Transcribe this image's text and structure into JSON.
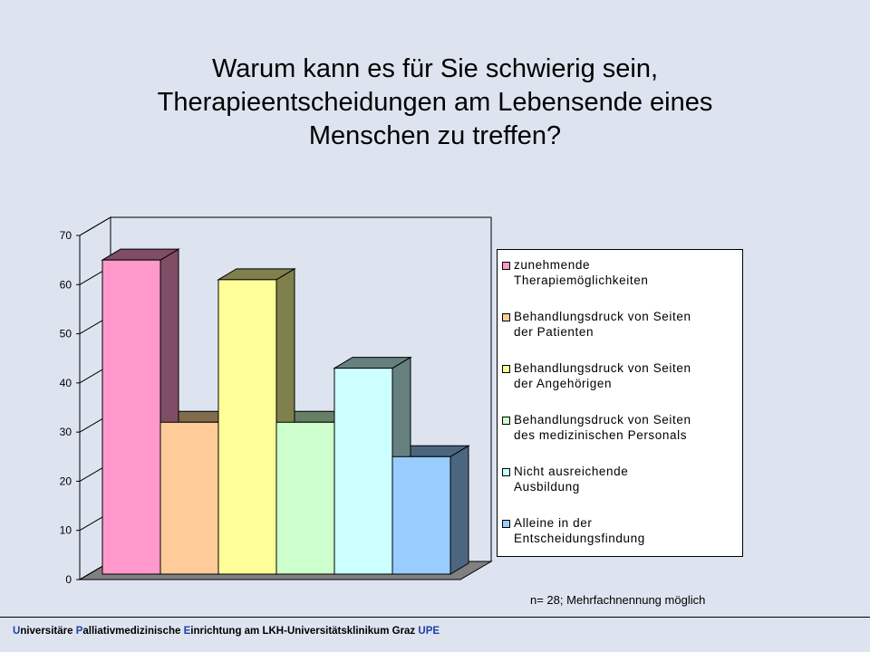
{
  "title_lines": [
    "Warum kann es für Sie schwierig sein,",
    "Therapieentscheidungen am Lebensende eines",
    "Menschen zu treffen?"
  ],
  "chart_data": {
    "type": "bar",
    "style": "3d-column",
    "categories": [
      "zunehmende Therapiemöglichkeiten",
      "Behandlungsdruck von Seiten der Patienten",
      "Behandlungsdruck von Seiten der Angehörigen",
      "Behandlungsdruck von Seiten des medizinischen Personals",
      "Nicht ausreichende Ausbildung",
      "Alleine in der Entscheidungsfindung"
    ],
    "values": [
      65,
      32,
      61,
      32,
      43,
      25
    ],
    "colors": [
      "#ff99cc",
      "#ffcc99",
      "#ffff99",
      "#ccffcc",
      "#ccffff",
      "#99ccff"
    ],
    "side_colors": [
      "#804d66",
      "#806c4d",
      "#80804d",
      "#668066",
      "#668080",
      "#4d6680"
    ],
    "ylim": [
      0,
      70
    ],
    "yticks": [
      "0",
      "10",
      "20",
      "30",
      "40",
      "50",
      "60",
      "70"
    ],
    "legend_position": "right",
    "legend": [
      [
        "zunehmende",
        "Therapiemöglichkeiten"
      ],
      [
        "Behandlungsdruck von Seiten",
        "der Patienten"
      ],
      [
        "Behandlungsdruck von Seiten",
        "der Angehörigen"
      ],
      [
        "Behandlungsdruck von Seiten",
        "des medizinischen Personals"
      ],
      [
        "Nicht ausreichende",
        "Ausbildung"
      ],
      [
        "Alleine in der",
        "Entscheidungsfindung"
      ]
    ],
    "grid": false
  },
  "note": "n= 28; Mehrfachnennung möglich",
  "footer": {
    "parts": [
      {
        "text": "U",
        "hl": true
      },
      {
        "text": "niversitäre ",
        "hl": false
      },
      {
        "text": "P",
        "hl": true
      },
      {
        "text": "alliativmedizinische ",
        "hl": false
      },
      {
        "text": "E",
        "hl": true
      },
      {
        "text": "inrichtung am LKH-Universitätsklinikum Graz ",
        "hl": false
      },
      {
        "text": "UPE",
        "hl": true
      }
    ]
  }
}
